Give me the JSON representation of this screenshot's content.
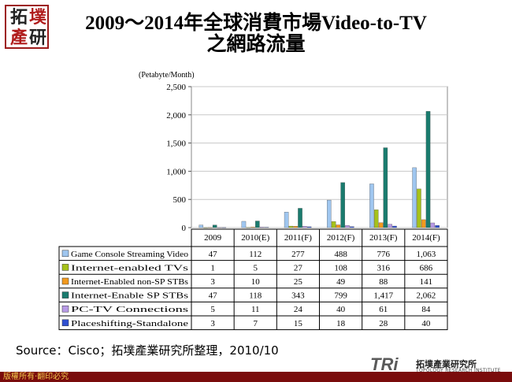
{
  "logo": {
    "chars": [
      "拓",
      "墣",
      "產",
      "研"
    ]
  },
  "title": {
    "line1": "2009～2014年全球消費市場Video-to-TV",
    "line2": "之網路流量"
  },
  "source": "Source：Cisco；拓墣產業研究所整理，2010/10",
  "copyright": "版權所有‧翻印必究",
  "brand": {
    "mark": "TRi",
    "name": "拓墣產業研究所",
    "sub": "TOPOLOGY RESEARCH INSTITUTE"
  },
  "chart_data": {
    "type": "bar",
    "unit_label": "(Petabyte/Month)",
    "categories": [
      "2009",
      "2010(E)",
      "2011(F)",
      "2012(F)",
      "2013(F)",
      "2014(F)"
    ],
    "ylim": [
      0,
      2500
    ],
    "yticks": [
      "0",
      "500",
      "1,000",
      "1,500",
      "2,000",
      "2,500"
    ],
    "grid": true,
    "series": [
      {
        "name": "Game Console Streaming Video",
        "color": "#9fc6ef",
        "values": [
          47,
          112,
          277,
          488,
          776,
          1063
        ],
        "labels": [
          "47",
          "112",
          "277",
          "488",
          "776",
          "1,063"
        ]
      },
      {
        "name": "Internet-enabled TVs",
        "color": "#a6c21a",
        "values": [
          1,
          5,
          27,
          108,
          316,
          686
        ],
        "labels": [
          "1",
          "5",
          "27",
          "108",
          "316",
          "686"
        ]
      },
      {
        "name": "Internet-Enabled non-SP STBs",
        "color": "#f29a1e",
        "values": [
          3,
          10,
          25,
          49,
          88,
          141
        ],
        "labels": [
          "3",
          "10",
          "25",
          "49",
          "88",
          "141"
        ]
      },
      {
        "name": "Internet-Enable SP STBs",
        "color": "#1a7b6e",
        "values": [
          47,
          118,
          343,
          799,
          1417,
          2062
        ],
        "labels": [
          "47",
          "118",
          "343",
          "799",
          "1,417",
          "2,062"
        ]
      },
      {
        "name": "PC-TV Connections",
        "color": "#b79ae6",
        "values": [
          5,
          11,
          24,
          40,
          61,
          84
        ],
        "labels": [
          "5",
          "11",
          "24",
          "40",
          "61",
          "84"
        ]
      },
      {
        "name": "Placeshifting-Standalone",
        "color": "#2f4fd1",
        "values": [
          3,
          7,
          15,
          18,
          28,
          40
        ],
        "labels": [
          "3",
          "7",
          "15",
          "18",
          "28",
          "40"
        ]
      }
    ]
  }
}
